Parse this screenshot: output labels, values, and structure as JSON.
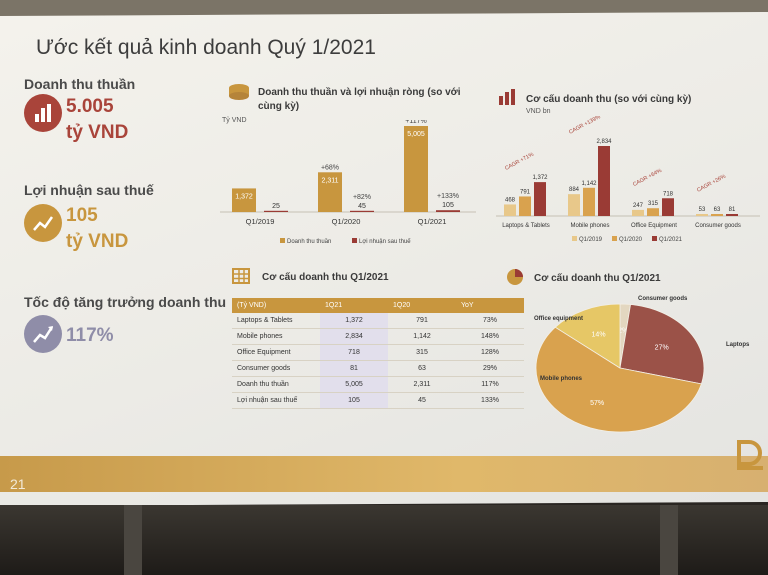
{
  "slide": {
    "title": "Ước kết quả kinh doanh Quý 1/2021",
    "page_number": "21"
  },
  "kpis": [
    {
      "label": "Doanh thu thuần",
      "value_line1": "5.005",
      "value_line2": "tỷ VND",
      "icon": "bar-chart-icon",
      "color": "#a9443a"
    },
    {
      "label": "Lợi nhuận sau thuế",
      "value_line1": "105",
      "value_line2": "tỷ VND",
      "icon": "line-chart-icon",
      "color": "#c8963e"
    },
    {
      "label": "Tốc độ tăng trưởng doanh thu",
      "value_line1": "117%",
      "value_line2": "",
      "icon": "growth-chart-icon",
      "color": "#8f8da8"
    }
  ],
  "chart_data": [
    {
      "type": "bar",
      "title": "Doanh thu thuần và lợi nhuận ròng (so với cùng kỳ)",
      "unit_label": "Tỷ VND",
      "categories": [
        "Q1/2019",
        "Q1/2020",
        "Q1/2021"
      ],
      "series": [
        {
          "name": "Doanh thu thuần",
          "values": [
            1372,
            2311,
            5005
          ],
          "value_labels": [
            "1,372",
            "2,311",
            "5,005"
          ],
          "growth_labels": [
            "",
            "+68%",
            "+117%"
          ],
          "color": "#c8963e"
        },
        {
          "name": "Lợi nhuận sau thuế",
          "values": [
            25,
            45,
            105
          ],
          "value_labels": [
            "25",
            "45",
            "105"
          ],
          "growth_labels": [
            "",
            "+82%",
            "+133%"
          ],
          "color": "#9a3b35"
        }
      ],
      "legend": "bottom"
    },
    {
      "type": "bar",
      "title": "Cơ cấu doanh thu (so với cùng kỳ)",
      "unit_label": "VND bn",
      "categories": [
        "Laptops & Tablets",
        "Mobile phones",
        "Office Equipment",
        "Consumer goods"
      ],
      "cagr_labels": [
        "CAGR +71%",
        "CAGR +139%",
        "CAGR +64%",
        "CAGR +26%"
      ],
      "series": [
        {
          "name": "Q1/2019",
          "values": [
            468,
            884,
            247,
            53
          ],
          "value_labels": [
            "468",
            "884",
            "247",
            "53"
          ],
          "color": "#e8c88a"
        },
        {
          "name": "Q1/2020",
          "values": [
            791,
            1142,
            315,
            63
          ],
          "value_labels": [
            "791",
            "1,142",
            "315",
            "63"
          ],
          "color": "#d9a24e"
        },
        {
          "name": "Q1/2021",
          "values": [
            1372,
            2834,
            718,
            81
          ],
          "value_labels": [
            "1,372",
            "2,834",
            "718",
            "81"
          ],
          "color": "#9a3b35"
        }
      ],
      "legend": "bottom"
    },
    {
      "type": "table",
      "title": "Cơ cấu doanh thu Q1/2021",
      "columns": [
        "(Tỷ VND)",
        "1Q21",
        "1Q20",
        "YoY"
      ],
      "rows": [
        [
          "Laptops & Tablets",
          "1,372",
          "791",
          "73%"
        ],
        [
          "Mobile phones",
          "2,834",
          "1,142",
          "148%"
        ],
        [
          "Office Equipment",
          "718",
          "315",
          "128%"
        ],
        [
          "Consumer goods",
          "81",
          "63",
          "29%"
        ],
        [
          "Doanh thu thuần",
          "5,005",
          "2,311",
          "117%"
        ],
        [
          "Lợi nhuận sau thuế",
          "105",
          "45",
          "133%"
        ]
      ]
    },
    {
      "type": "pie",
      "title": "Cơ cấu doanh thu Q1/2021",
      "slices": [
        {
          "label": "Consumer goods",
          "value": 2,
          "value_label": "2%",
          "color": "#e3d7c0"
        },
        {
          "label": "Laptops & tablets",
          "value": 27,
          "value_label": "27%",
          "color": "#9b5248"
        },
        {
          "label": "Mobile phones",
          "value": 57,
          "value_label": "57%",
          "color": "#d9a24e"
        },
        {
          "label": "Office equipment",
          "value": 14,
          "value_label": "14%",
          "color": "#e6c766"
        }
      ]
    }
  ]
}
